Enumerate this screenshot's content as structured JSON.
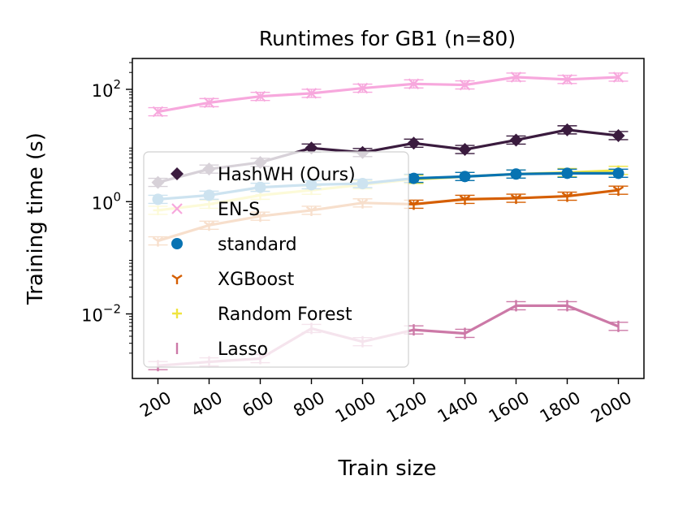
{
  "chart_data": {
    "type": "line",
    "title": "Runtimes for GB1 (n=80)",
    "xlabel": "Train size",
    "ylabel": "Training time (s)",
    "yscale": "log",
    "xlim": [
      100,
      2100
    ],
    "ylim_log10": [
      -3.15,
      2.55
    ],
    "x": [
      200,
      400,
      600,
      800,
      1000,
      1200,
      1400,
      1600,
      1800,
      2000
    ],
    "x_tick_labels": [
      "200",
      "400",
      "600",
      "800",
      "1000",
      "1200",
      "1400",
      "1600",
      "1800",
      "2000"
    ],
    "y_ticks": [
      {
        "base": "10",
        "exp": "2",
        "value": 100
      },
      {
        "base": "10",
        "exp": "0",
        "value": 1
      },
      {
        "base": "10",
        "exp": "−2",
        "value": 0.01
      }
    ],
    "legend_position": "center-left",
    "series": [
      {
        "name": "HashWH (Ours)",
        "color": "#3a1b3e",
        "marker": "diamond",
        "values": [
          2.2,
          3.8,
          5.0,
          9.0,
          7.5,
          11.0,
          8.5,
          12.5,
          19.0,
          15.0
        ]
      },
      {
        "name": "EN-S",
        "color": "#f7a8dd",
        "marker": "x",
        "values": [
          40,
          58,
          75,
          85,
          105,
          125,
          120,
          165,
          150,
          165
        ]
      },
      {
        "name": "standard",
        "color": "#0873b2",
        "marker": "circle",
        "values": [
          1.1,
          1.3,
          1.8,
          2.0,
          2.1,
          2.6,
          2.8,
          3.1,
          3.2,
          3.2
        ]
      },
      {
        "name": "XGBoost",
        "color": "#d55e00",
        "marker": "tri_down",
        "values": [
          0.2,
          0.38,
          0.55,
          0.7,
          0.95,
          0.9,
          1.1,
          1.15,
          1.25,
          1.6
        ]
      },
      {
        "name": "Random Forest",
        "color": "#efe43f",
        "marker": "plus",
        "values": [
          0.7,
          0.9,
          1.3,
          1.6,
          2.0,
          2.5,
          2.8,
          3.1,
          3.3,
          3.6
        ]
      },
      {
        "name": "Lasso",
        "color": "#cc79a7",
        "marker": "vline",
        "values": [
          0.0012,
          0.0014,
          0.0016,
          0.0055,
          0.0032,
          0.0052,
          0.0045,
          0.014,
          0.014,
          0.006
        ]
      }
    ]
  }
}
